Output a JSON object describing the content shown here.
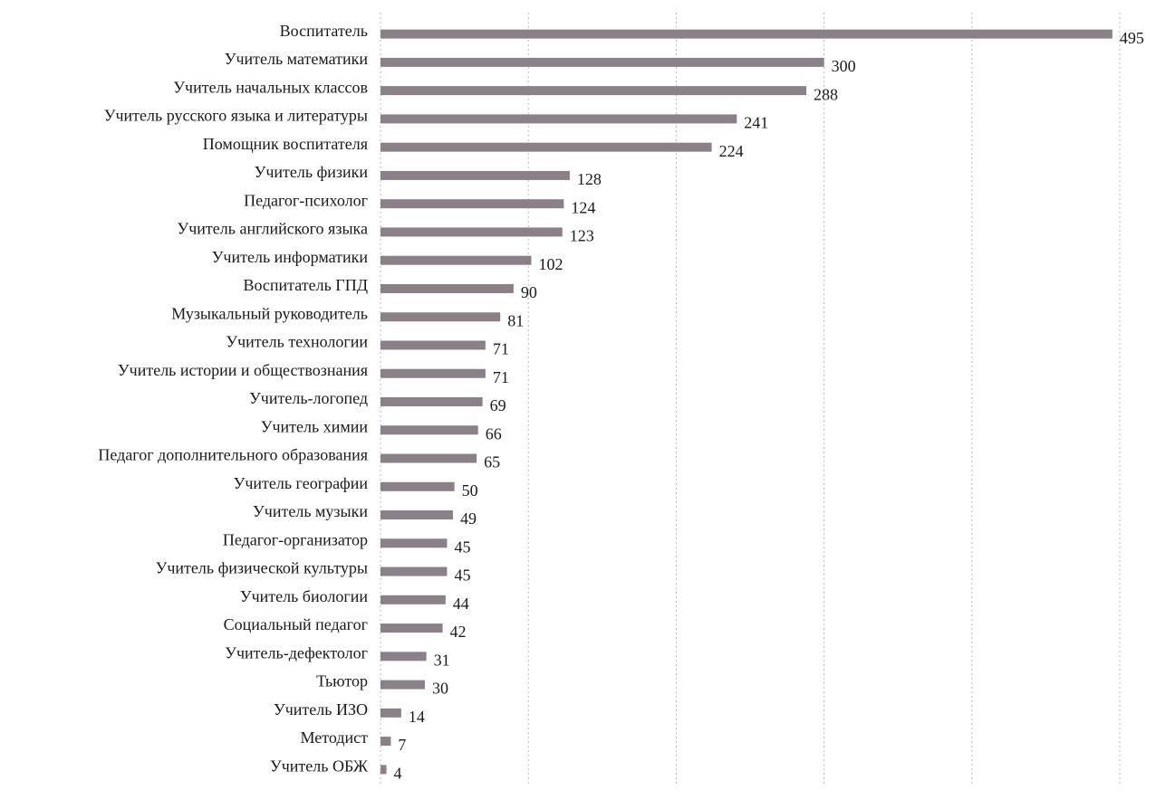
{
  "chart_data": {
    "type": "barh",
    "categories": [
      "Воспитатель",
      "Учитель математики",
      "Учитель начальных классов",
      "Учитель русского языка и литературы",
      "Помощник воспитателя",
      "Учитель физики",
      "Педагог-психолог",
      "Учитель английского языка",
      "Учитель информатики",
      "Воспитатель ГПД",
      "Музыкальный руководитель",
      "Учитель технологии",
      "Учитель истории и обществознания",
      "Учитель-логопед",
      "Учитель химии",
      "Педагог дополнительного образования",
      "Учитель географии",
      "Учитель музыки",
      "Педагог-организатор",
      "Учитель физической культуры",
      "Учитель биологии",
      "Социальный педагог",
      "Учитель-дефектолог",
      "Тьютор",
      "Учитель ИЗО",
      "Методист",
      "Учитель ОБЖ"
    ],
    "values": [
      495,
      300,
      288,
      241,
      224,
      128,
      124,
      123,
      102,
      90,
      81,
      71,
      71,
      69,
      66,
      65,
      50,
      49,
      45,
      45,
      44,
      42,
      31,
      30,
      14,
      7,
      4
    ],
    "color": "#8a8088",
    "xlim": [
      0,
      500
    ],
    "xticks": [
      0,
      100,
      200,
      300,
      400,
      500
    ],
    "grid": true
  }
}
